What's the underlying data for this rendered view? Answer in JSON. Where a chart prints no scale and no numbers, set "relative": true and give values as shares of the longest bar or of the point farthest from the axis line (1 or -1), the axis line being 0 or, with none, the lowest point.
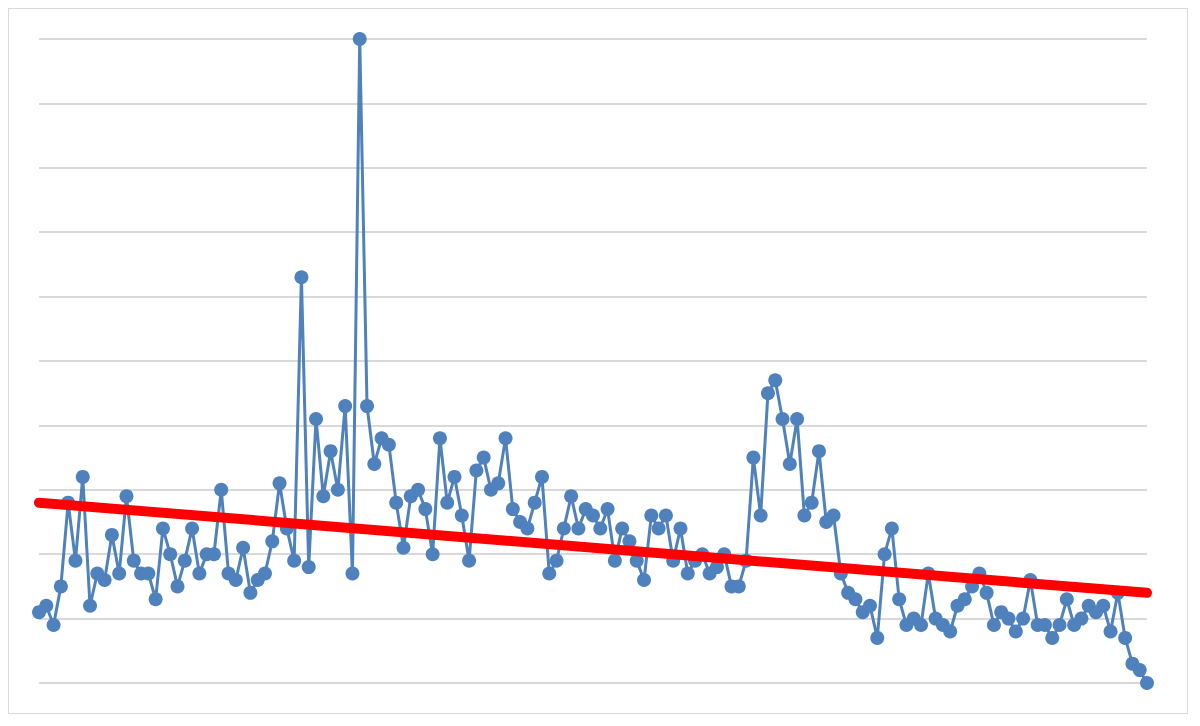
{
  "chart_data": {
    "type": "line",
    "relative": true,
    "grid": "y",
    "categories": [
      null,
      null,
      null,
      null,
      null,
      null,
      null,
      null,
      null,
      null,
      null,
      null,
      null,
      null,
      null,
      null,
      null,
      null,
      null,
      null,
      null,
      null,
      null,
      null,
      null,
      null,
      null,
      null,
      null,
      null,
      null,
      null,
      null,
      null,
      null,
      null,
      null,
      null,
      null,
      null,
      null,
      null,
      null,
      null,
      null,
      null,
      null,
      null,
      null,
      null,
      null,
      null,
      null,
      null,
      null,
      null,
      null,
      null,
      null,
      null,
      null,
      null,
      null,
      null,
      null,
      null,
      null,
      null,
      null,
      null,
      null,
      null,
      null,
      null,
      null,
      null,
      null,
      null,
      null,
      null,
      null,
      null,
      null,
      null,
      null,
      null,
      null,
      null,
      null,
      null,
      null,
      null,
      null,
      null,
      null,
      null,
      null,
      null,
      null,
      null,
      null,
      null,
      null,
      null,
      null,
      null,
      null,
      null,
      null,
      null,
      null,
      null,
      null,
      null,
      null,
      null,
      null,
      null,
      null,
      null,
      null,
      null,
      null,
      null,
      null,
      null,
      null,
      null,
      null,
      null,
      null,
      null,
      null,
      null,
      null,
      null,
      null,
      null,
      null,
      null,
      null,
      null,
      null,
      null,
      null,
      null,
      null,
      null,
      null,
      null,
      null,
      null,
      null
    ],
    "series": [
      {
        "color": "#4f81bd",
        "marker": "circle",
        "values": [
          0.11,
          0.12,
          0.09,
          0.15,
          0.28,
          0.19,
          0.32,
          0.12,
          0.17,
          0.16,
          0.23,
          0.17,
          0.29,
          0.19,
          0.17,
          0.17,
          0.13,
          0.24,
          0.2,
          0.15,
          0.19,
          0.24,
          0.17,
          0.2,
          0.2,
          0.3,
          0.17,
          0.16,
          0.21,
          0.14,
          0.16,
          0.17,
          0.22,
          0.31,
          0.24,
          0.19,
          0.63,
          0.18,
          0.41,
          0.29,
          0.36,
          0.3,
          0.43,
          0.17,
          1,
          0.43,
          0.34,
          0.38,
          0.37,
          0.28,
          0.21,
          0.29,
          0.3,
          0.27,
          0.2,
          0.38,
          0.28,
          0.32,
          0.26,
          0.19,
          0.33,
          0.35,
          0.3,
          0.31,
          0.38,
          0.27,
          0.25,
          0.24,
          0.28,
          0.32,
          0.17,
          0.19,
          0.24,
          0.29,
          0.24,
          0.27,
          0.26,
          0.24,
          0.27,
          0.19,
          0.24,
          0.22,
          0.19,
          0.16,
          0.26,
          0.24,
          0.26,
          0.19,
          0.24,
          0.17,
          0.19,
          0.2,
          0.17,
          0.18,
          0.2,
          0.15,
          0.15,
          0.19,
          0.35,
          0.26,
          0.45,
          0.47,
          0.41,
          0.34,
          0.41,
          0.26,
          0.28,
          0.36,
          0.25,
          0.26,
          0.17,
          0.14,
          0.13,
          0.11,
          0.12,
          0.07,
          0.2,
          0.24,
          0.13,
          0.09,
          0.1,
          0.09,
          0.17,
          0.1,
          0.09,
          0.08,
          0.12,
          0.13,
          0.15,
          0.17,
          0.14,
          0.09,
          0.11,
          0.1,
          0.08,
          0.1,
          0.16,
          0.09,
          0.09,
          0.07,
          0.09,
          0.13,
          0.09,
          0.1,
          0.12,
          0.11,
          0.12,
          0.08,
          0.14,
          0.07,
          0.03,
          0.02,
          0
        ]
      },
      {
        "color": "#ff0000",
        "marker": "none",
        "values": [
          0.28,
          null,
          null,
          null,
          null,
          null,
          null,
          null,
          null,
          null,
          null,
          null,
          null,
          null,
          null,
          null,
          null,
          null,
          null,
          null,
          null,
          null,
          null,
          null,
          null,
          null,
          null,
          null,
          null,
          null,
          null,
          null,
          null,
          null,
          null,
          null,
          null,
          null,
          null,
          null,
          null,
          null,
          null,
          null,
          null,
          null,
          null,
          null,
          null,
          null,
          null,
          null,
          null,
          null,
          null,
          null,
          null,
          null,
          null,
          null,
          null,
          null,
          null,
          null,
          null,
          null,
          null,
          null,
          null,
          null,
          null,
          null,
          null,
          null,
          null,
          null,
          null,
          null,
          null,
          null,
          null,
          null,
          null,
          null,
          null,
          null,
          null,
          null,
          null,
          null,
          null,
          null,
          null,
          null,
          null,
          null,
          null,
          null,
          null,
          null,
          null,
          null,
          null,
          null,
          null,
          null,
          null,
          null,
          null,
          null,
          null,
          null,
          null,
          null,
          null,
          null,
          null,
          null,
          null,
          null,
          null,
          null,
          null,
          null,
          null,
          null,
          null,
          null,
          null,
          null,
          null,
          null,
          null,
          null,
          null,
          null,
          null,
          null,
          null,
          null,
          null,
          null,
          null,
          null,
          null,
          null,
          null,
          null,
          null,
          null,
          null,
          null,
          0.14
        ]
      }
    ]
  }
}
